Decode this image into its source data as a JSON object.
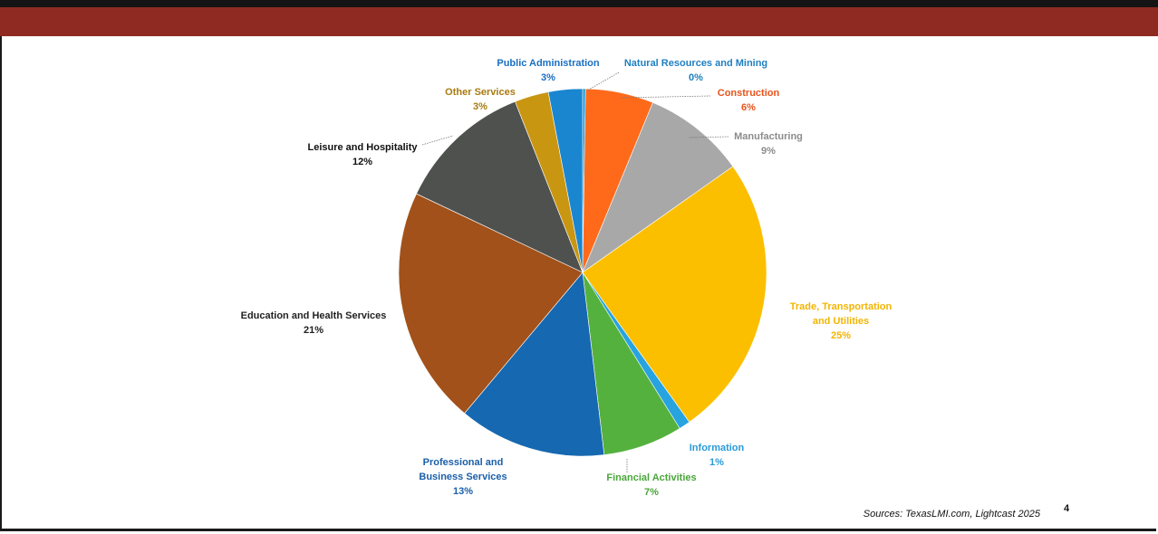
{
  "chart_data": {
    "type": "pie",
    "slices": [
      {
        "label": "Natural Resources and Mining",
        "value": 0,
        "value_label": "0%",
        "color": "#1f95d0",
        "label_color": "#1f7fc0"
      },
      {
        "label": "Construction",
        "value": 6,
        "value_label": "6%",
        "color": "#ff6a1a",
        "label_color": "#e8531b"
      },
      {
        "label": "Manufacturing",
        "value": 9,
        "value_label": "9%",
        "color": "#a8a8a8",
        "label_color": "#8c8c8c"
      },
      {
        "label": "Trade, Transportation and Utilities",
        "value": 25,
        "value_label": "25%",
        "color": "#fbbf00",
        "label_color": "#f2b500"
      },
      {
        "label": "Information",
        "value": 1,
        "value_label": "1%",
        "color": "#27a3e0",
        "label_color": "#2a9ad8"
      },
      {
        "label": "Financial Activities",
        "value": 7,
        "value_label": "7%",
        "color": "#55b13e",
        "label_color": "#4aa63a"
      },
      {
        "label": "Professional and Business Services",
        "value": 13,
        "value_label": "13%",
        "color": "#1668b0",
        "label_color": "#1b5fa8"
      },
      {
        "label": "Education and Health Services",
        "value": 21,
        "value_label": "21%",
        "color": "#a2511a",
        "label_color": "#222222"
      },
      {
        "label": "Leisure and Hospitality",
        "value": 12,
        "value_label": "12%",
        "color": "#4f514e",
        "label_color": "#111111"
      },
      {
        "label": "Other Services",
        "value": 3,
        "value_label": "3%",
        "color": "#c99612",
        "label_color": "#a87a10"
      },
      {
        "label": "Public Administration",
        "value": 3,
        "value_label": "3%",
        "color": "#1a86d0",
        "label_color": "#1a6fc0"
      }
    ]
  },
  "footer": {
    "source": "Sources: TexasLMI.com, Lightcast 2025",
    "page_number": "4"
  }
}
